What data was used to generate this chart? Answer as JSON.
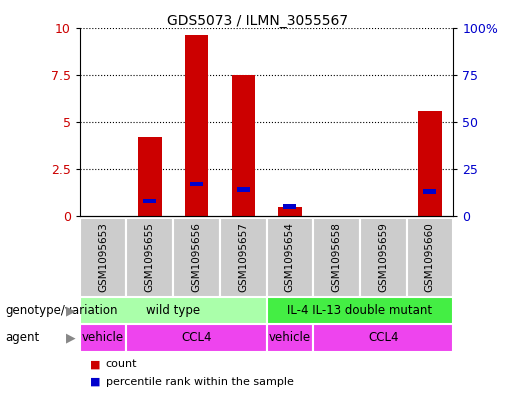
{
  "title": "GDS5073 / ILMN_3055567",
  "samples": [
    "GSM1095653",
    "GSM1095655",
    "GSM1095656",
    "GSM1095657",
    "GSM1095654",
    "GSM1095658",
    "GSM1095659",
    "GSM1095660"
  ],
  "counts": [
    0,
    4.2,
    9.6,
    7.5,
    0.5,
    0,
    0,
    5.6
  ],
  "percentiles": [
    0,
    8,
    17,
    14,
    5,
    0,
    0,
    13
  ],
  "ylim_left": [
    0,
    10
  ],
  "ylim_right": [
    0,
    100
  ],
  "yticks_left": [
    0,
    2.5,
    5,
    7.5,
    10
  ],
  "yticks_left_labels": [
    "0",
    "2.5",
    "5",
    "7.5",
    "10"
  ],
  "yticks_right": [
    0,
    25,
    50,
    75,
    100
  ],
  "yticks_right_labels": [
    "0",
    "25",
    "50",
    "75",
    "100%"
  ],
  "bar_color": "#cc0000",
  "percentile_color": "#0000cc",
  "bar_width": 0.5,
  "genotype_groups": [
    {
      "label": "wild type",
      "start": 0,
      "end": 4,
      "color": "#aaffaa"
    },
    {
      "label": "IL-4 IL-13 double mutant",
      "start": 4,
      "end": 8,
      "color": "#44ee44"
    }
  ],
  "agent_groups": [
    {
      "label": "vehicle",
      "start": 0,
      "end": 1,
      "color": "#ee44ee"
    },
    {
      "label": "CCL4",
      "start": 1,
      "end": 4,
      "color": "#ee44ee"
    },
    {
      "label": "vehicle",
      "start": 4,
      "end": 5,
      "color": "#ee44ee"
    },
    {
      "label": "CCL4",
      "start": 5,
      "end": 8,
      "color": "#ee44ee"
    }
  ],
  "bg_color": "#cccccc",
  "label_genotype": "genotype/variation",
  "label_agent": "agent",
  "legend_count": "count",
  "legend_percentile": "percentile rank within the sample",
  "fig_width": 5.15,
  "fig_height": 3.93
}
